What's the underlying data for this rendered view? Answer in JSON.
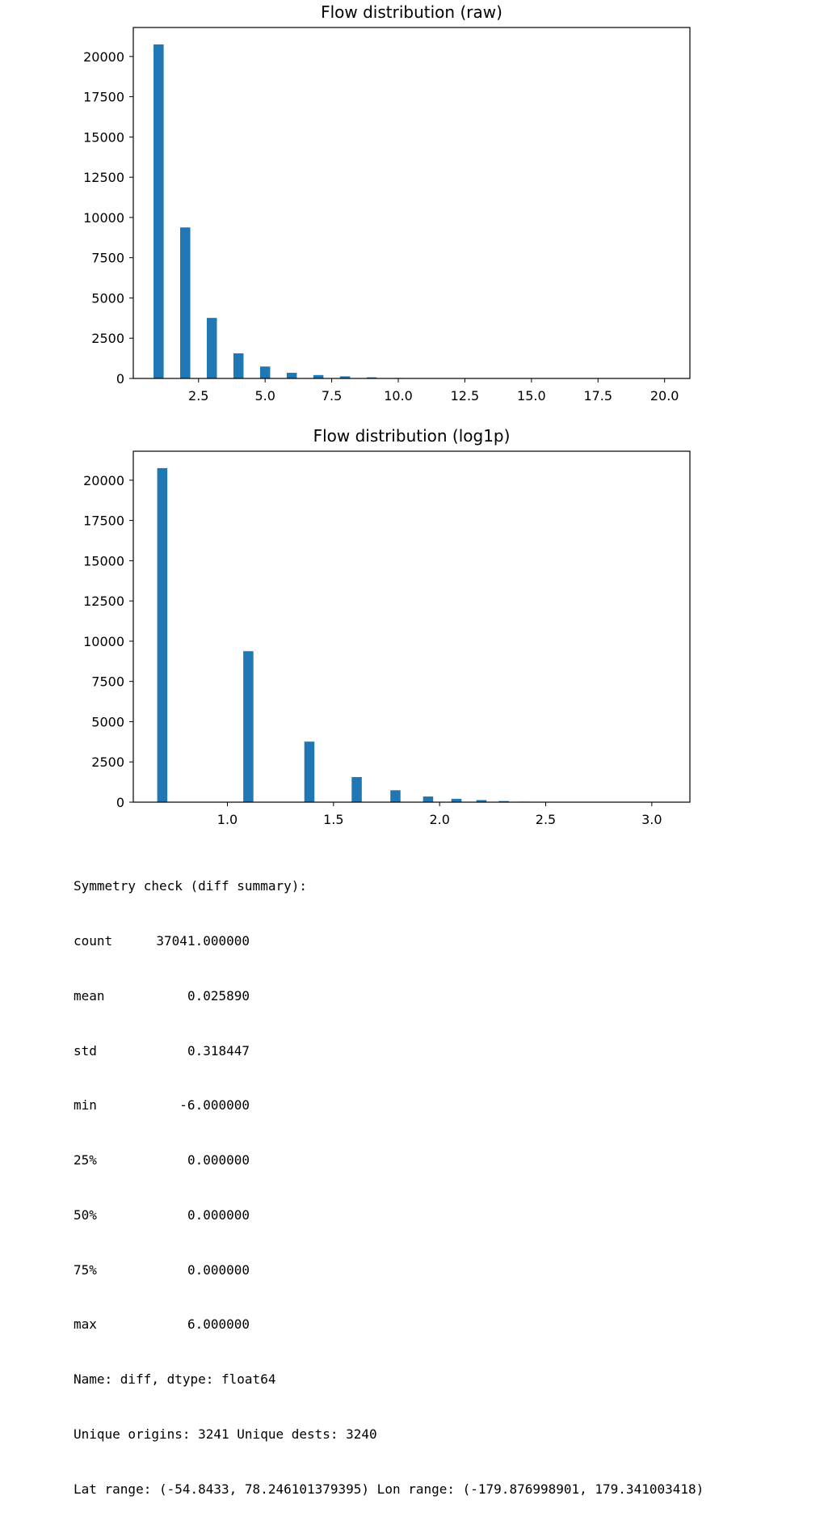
{
  "colors": {
    "bar": "#1f77b4",
    "axis": "#000000"
  },
  "chart_data": [
    {
      "type": "bar",
      "title": "Flow distribution (raw)",
      "xlabel": "",
      "ylabel": "",
      "xlim": [
        0.05,
        20.95
      ],
      "ylim": [
        0,
        21800
      ],
      "bar_width": 0.38,
      "x": [
        1,
        2,
        3,
        4,
        5,
        6,
        7,
        8,
        9,
        10,
        11,
        12,
        13,
        14,
        15,
        16,
        17,
        18,
        19,
        20
      ],
      "values": [
        20750,
        9380,
        3760,
        1560,
        740,
        350,
        210,
        130,
        70,
        30,
        15,
        8,
        5,
        4,
        3,
        2,
        1,
        1,
        1,
        1
      ],
      "xticks": [
        "2.5",
        "5.0",
        "7.5",
        "10.0",
        "12.5",
        "15.0",
        "17.5",
        "20.0"
      ],
      "yticks": [
        "0",
        "2500",
        "5000",
        "7500",
        "10000",
        "12500",
        "15000",
        "17500",
        "20000"
      ]
    },
    {
      "type": "bar",
      "title": "Flow distribution (log1p)",
      "xlabel": "",
      "ylabel": "",
      "xlim": [
        0.5565,
        3.1795
      ],
      "ylim": [
        0,
        21800
      ],
      "bar_width": 0.0477,
      "x": [
        0.6931,
        1.0986,
        1.3863,
        1.6094,
        1.7918,
        1.9459,
        2.0794,
        2.1972,
        2.3026,
        2.3979,
        2.4849,
        2.5649,
        2.6391,
        2.7081,
        2.7726,
        2.8332,
        2.8904,
        2.9444,
        2.9957,
        3.0445
      ],
      "values": [
        20750,
        9380,
        3760,
        1560,
        740,
        350,
        210,
        130,
        70,
        30,
        15,
        8,
        5,
        4,
        3,
        2,
        1,
        1,
        1,
        1
      ],
      "xticks": [
        "1.0",
        "1.5",
        "2.0",
        "2.5",
        "3.0"
      ],
      "yticks": [
        "0",
        "2500",
        "5000",
        "7500",
        "10000",
        "12500",
        "15000",
        "17500",
        "20000"
      ]
    }
  ],
  "output": {
    "header": "Symmetry check (diff summary):",
    "stats": [
      {
        "key": "count",
        "value": "37041.000000"
      },
      {
        "key": "mean",
        "value": "0.025890"
      },
      {
        "key": "std",
        "value": "0.318447"
      },
      {
        "key": "min",
        "value": "-6.000000"
      },
      {
        "key": "25%",
        "value": "0.000000"
      },
      {
        "key": "50%",
        "value": "0.000000"
      },
      {
        "key": "75%",
        "value": "0.000000"
      },
      {
        "key": "max",
        "value": "6.000000"
      }
    ],
    "name_line": "Name: diff, dtype: float64",
    "unique_line": "Unique origins: 3241 Unique dests: 3240",
    "range_line": "Lat range: (-54.8433, 78.246101379395) Lon range: (-179.876998901, 179.341003418)"
  }
}
